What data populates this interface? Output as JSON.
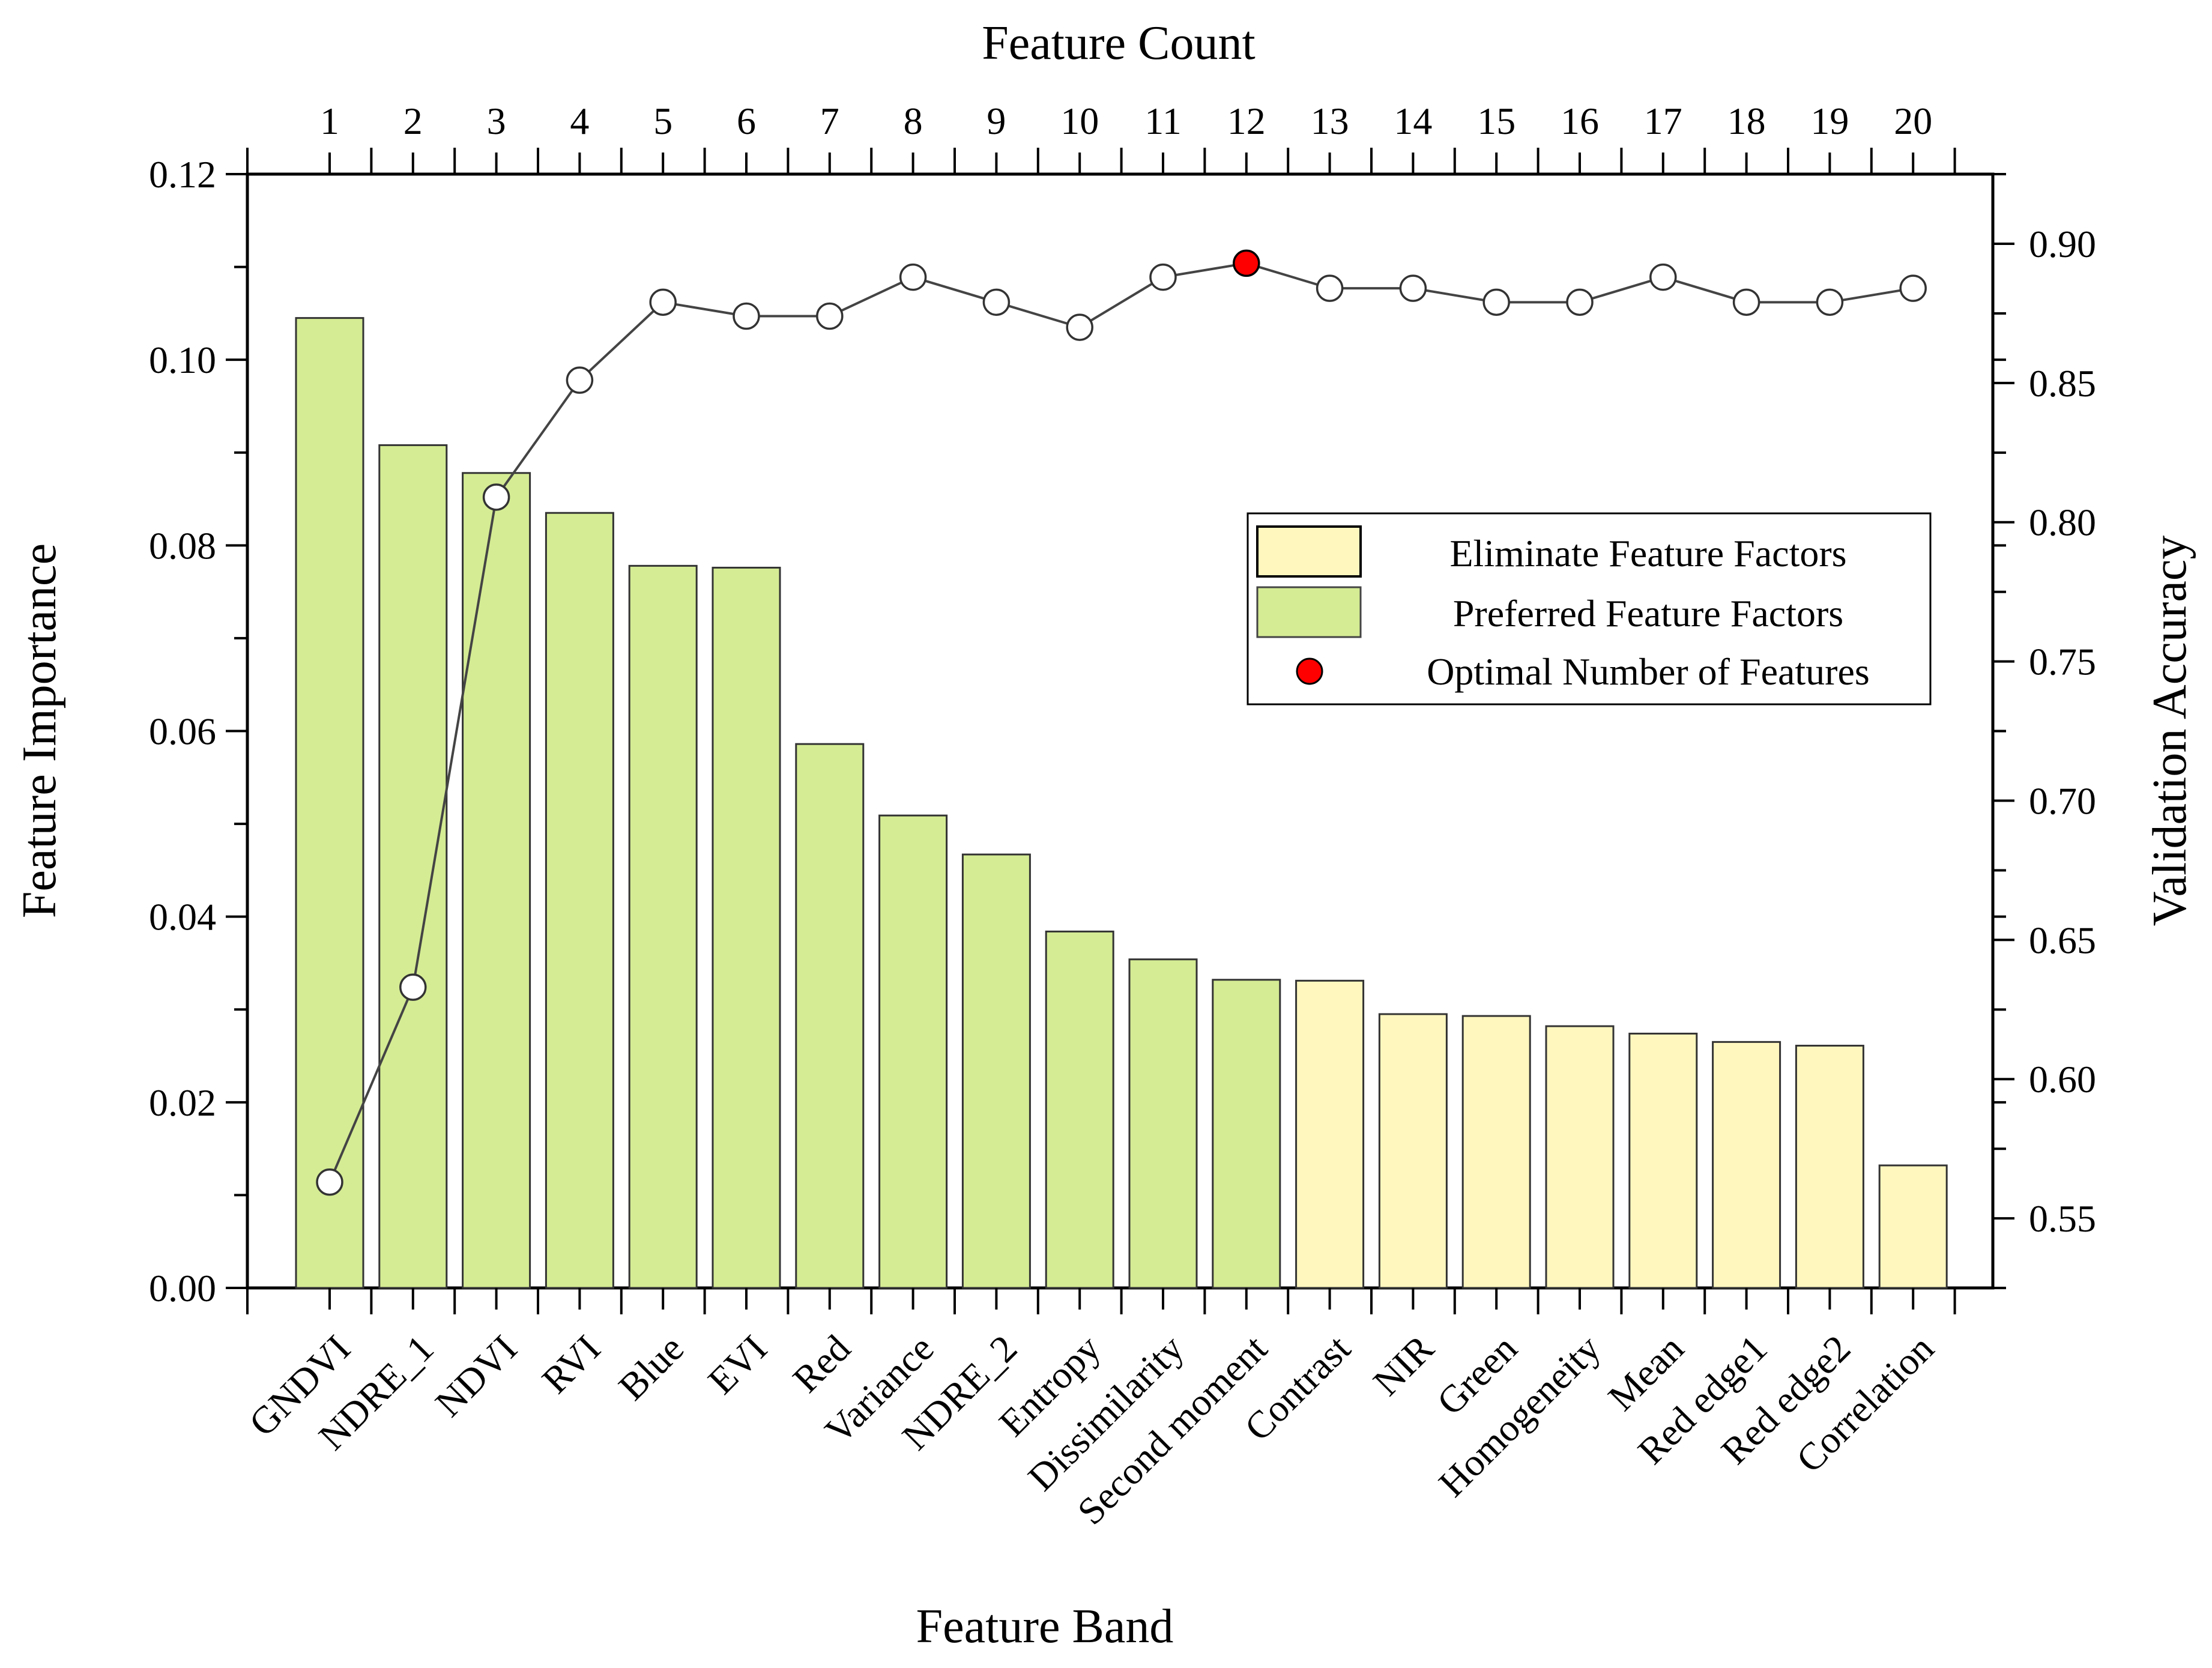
{
  "chart_data": {
    "type": "bar",
    "title": "",
    "xlabel": "Feature Band",
    "ylabel": "Feature Importance",
    "y2label": "Validation Accuracy",
    "x2label": "Feature Count",
    "categories": [
      "GNDVI",
      "NDRE_1",
      "NDVI",
      "RVI",
      "Blue",
      "EVI",
      "Red",
      "Variance",
      "NDRE_2",
      "Entropy",
      "Dissimilarity",
      "Second moment",
      "Contrast",
      "NIR",
      "Green",
      "Homogeneity",
      "Mean",
      "Red edge1",
      "Red edge2",
      "Correlation"
    ],
    "feature_count": [
      1,
      2,
      3,
      4,
      5,
      6,
      7,
      8,
      9,
      10,
      11,
      12,
      13,
      14,
      15,
      16,
      17,
      18,
      19,
      20
    ],
    "series": [
      {
        "name": "Feature Importance",
        "type": "bar",
        "axis": "left",
        "values": [
          0.1045,
          0.0908,
          0.0878,
          0.0835,
          0.0778,
          0.0776,
          0.0586,
          0.0509,
          0.0467,
          0.0384,
          0.0354,
          0.0332,
          0.0331,
          0.0295,
          0.0293,
          0.0282,
          0.0274,
          0.0265,
          0.0261,
          0.0132
        ],
        "groups": [
          "preferred",
          "preferred",
          "preferred",
          "preferred",
          "preferred",
          "preferred",
          "preferred",
          "preferred",
          "preferred",
          "preferred",
          "preferred",
          "preferred",
          "eliminate",
          "eliminate",
          "eliminate",
          "eliminate",
          "eliminate",
          "eliminate",
          "eliminate",
          "eliminate"
        ]
      },
      {
        "name": "Validation Accuracy",
        "type": "line",
        "axis": "right",
        "values": [
          0.563,
          0.633,
          0.809,
          0.851,
          0.879,
          0.874,
          0.874,
          0.888,
          0.879,
          0.87,
          0.888,
          0.893,
          0.884,
          0.884,
          0.879,
          0.879,
          0.888,
          0.879,
          0.879,
          0.884
        ],
        "optimal_index": 11
      }
    ],
    "ylim": [
      0,
      0.12
    ],
    "y_ticks": [
      "0.00",
      "0.02",
      "0.04",
      "0.06",
      "0.08",
      "0.10",
      "0.12"
    ],
    "y2lim": [
      0.525,
      0.925
    ],
    "y2_ticks": [
      "0.55",
      "0.60",
      "0.65",
      "0.70",
      "0.75",
      "0.80",
      "0.85",
      "0.90"
    ],
    "legend": {
      "position": "center-right",
      "entries": [
        {
          "label": "Eliminate Feature Factors",
          "kind": "eliminate"
        },
        {
          "label": "Preferred Feature Factors",
          "kind": "preferred"
        },
        {
          "label": "Optimal Number of Features",
          "kind": "optimal"
        }
      ]
    },
    "colors": {
      "preferred": "#D5EC94",
      "eliminate": "#FFF7BE",
      "optimal": "#FF0000",
      "line": "#444444",
      "marker": "#FFFFFF",
      "axis": "#000000"
    }
  }
}
